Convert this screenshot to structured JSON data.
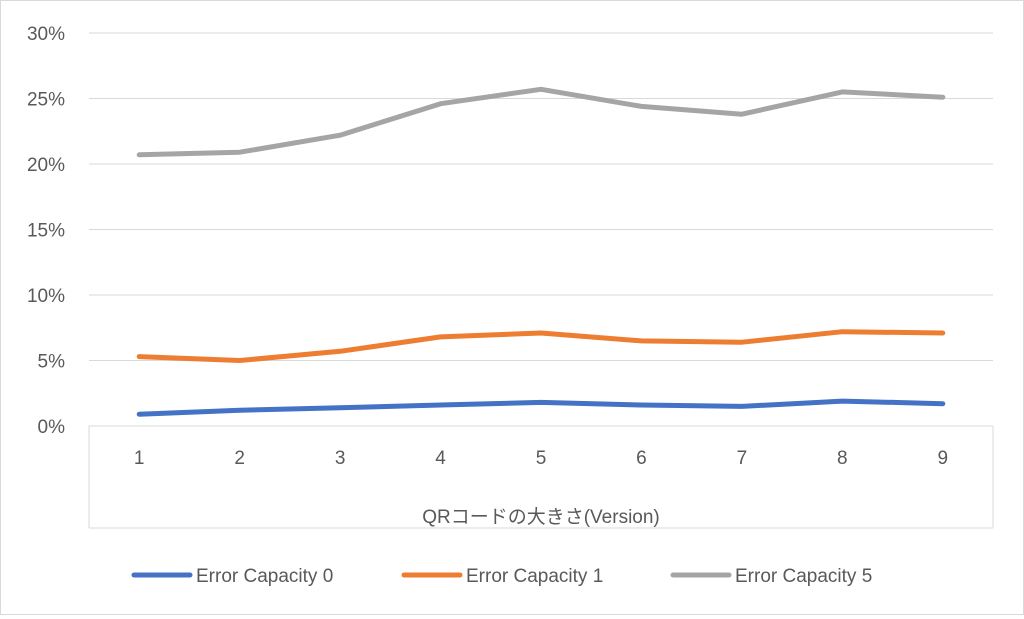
{
  "chart_data": {
    "type": "line",
    "title": "",
    "xlabel": "QRコードの大きさ(Version)",
    "ylabel": "",
    "categories": [
      "1",
      "2",
      "3",
      "4",
      "5",
      "6",
      "7",
      "8",
      "9"
    ],
    "ylim": [
      0,
      0.3
    ],
    "yticks": [
      0,
      0.05,
      0.1,
      0.15,
      0.2,
      0.25,
      0.3
    ],
    "ytick_labels": [
      "0%",
      "5%",
      "10%",
      "15%",
      "20%",
      "25%",
      "30%"
    ],
    "grid": true,
    "legend_position": "bottom",
    "series": [
      {
        "name": "Error Capacity 0",
        "color": "#4472c4",
        "values": [
          0.009,
          0.012,
          0.014,
          0.016,
          0.018,
          0.016,
          0.015,
          0.019,
          0.017
        ]
      },
      {
        "name": "Error Capacity 1",
        "color": "#ed7d31",
        "values": [
          0.053,
          0.05,
          0.057,
          0.068,
          0.071,
          0.065,
          0.064,
          0.072,
          0.071
        ]
      },
      {
        "name": "Error Capacity 5",
        "color": "#a5a5a5",
        "values": [
          0.207,
          0.209,
          0.222,
          0.246,
          0.257,
          0.244,
          0.238,
          0.255,
          0.251
        ]
      }
    ]
  }
}
